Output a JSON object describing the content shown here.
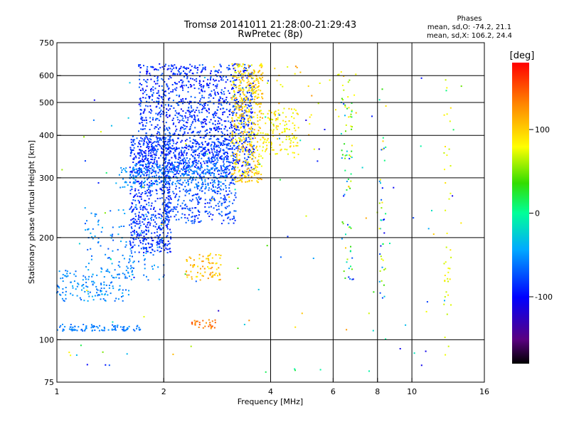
{
  "header": {
    "title_line1": "Tromsø 20141011 21:28:00-21:29:43",
    "title_line2": "RwPretec (8p)"
  },
  "phases": {
    "heading": "Phases",
    "line_o": "mean, sd,O: -74.2, 21.1",
    "line_x": "mean, sd,X: 106.2, 24.4"
  },
  "colorbar": {
    "unit": "[deg]",
    "ticks": [
      {
        "value": 100,
        "label": "100"
      },
      {
        "value": 0,
        "label": "0"
      },
      {
        "value": -100,
        "label": "-100"
      }
    ],
    "range": [
      -180,
      180
    ]
  },
  "chart_data": {
    "type": "scatter",
    "xlabel": "Frequency [MHz]",
    "ylabel": "Stationary phase Virtual Height [km]",
    "xscale": "log",
    "yscale": "log",
    "xlim": [
      1,
      16
    ],
    "ylim": [
      75,
      750
    ],
    "x_ticks": [
      {
        "value": 1,
        "label": "1"
      },
      {
        "value": 2,
        "label": "2"
      },
      {
        "value": 4,
        "label": "4"
      },
      {
        "value": 6,
        "label": "6"
      },
      {
        "value": 8,
        "label": "8"
      },
      {
        "value": 10,
        "label": "10"
      },
      {
        "value": 16,
        "label": "16"
      }
    ],
    "y_ticks": [
      {
        "value": 75,
        "label": "75"
      },
      {
        "value": 100,
        "label": "100"
      },
      {
        "value": 200,
        "label": "200"
      },
      {
        "value": 300,
        "label": "300"
      },
      {
        "value": 400,
        "label": "400"
      },
      {
        "value": 500,
        "label": "500"
      },
      {
        "value": 600,
        "label": "600"
      },
      {
        "value": 750,
        "label": "750"
      }
    ],
    "grid_x": [
      2,
      4,
      6,
      8,
      10
    ],
    "grid_y": [
      100,
      200,
      300,
      400,
      500,
      600
    ],
    "clusters": [
      {
        "name": "o-low-layer",
        "f": [
          1.0,
          1.75
        ],
        "h": [
          106,
          111
        ],
        "phase": [
          -70,
          -50
        ],
        "count": 90
      },
      {
        "name": "o-lower-branch",
        "f": [
          1.0,
          1.6
        ],
        "h": [
          130,
          160
        ],
        "phase": [
          -70,
          -40
        ],
        "count": 140
      },
      {
        "name": "o-f-trace-lower",
        "f": [
          1.2,
          2.0
        ],
        "h": [
          150,
          250
        ],
        "phase": [
          -75,
          -40
        ],
        "count": 160
      },
      {
        "name": "o-f-cusp",
        "f": [
          1.6,
          2.1
        ],
        "h": [
          180,
          400
        ],
        "phase": [
          -100,
          -70
        ],
        "count": 600
      },
      {
        "name": "o-f-main",
        "f": [
          1.7,
          3.6
        ],
        "h": [
          300,
          650
        ],
        "phase": [
          -105,
          -65
        ],
        "count": 1500
      },
      {
        "name": "o-f-mid",
        "f": [
          2.0,
          3.2
        ],
        "h": [
          220,
          380
        ],
        "phase": [
          -95,
          -60
        ],
        "count": 500
      },
      {
        "name": "o-trace-cyan",
        "f": [
          1.5,
          3.0
        ],
        "h": [
          280,
          330
        ],
        "phase": [
          -65,
          -45
        ],
        "count": 220
      },
      {
        "name": "x-f-trace",
        "f": [
          3.1,
          3.8
        ],
        "h": [
          290,
          650
        ],
        "phase": [
          90,
          135
        ],
        "count": 450
      },
      {
        "name": "x-f-upper",
        "f": [
          3.8,
          4.8
        ],
        "h": [
          350,
          480
        ],
        "phase": [
          90,
          120
        ],
        "count": 120
      },
      {
        "name": "x-lower-patch",
        "f": [
          2.3,
          2.9
        ],
        "h": [
          150,
          180
        ],
        "phase": [
          100,
          140
        ],
        "count": 80
      },
      {
        "name": "x-e-layer",
        "f": [
          2.4,
          2.8
        ],
        "h": [
          108,
          115
        ],
        "phase": [
          135,
          160
        ],
        "count": 30
      },
      {
        "name": "x-sporadic",
        "f": [
          4.0,
          7.0
        ],
        "h": [
          400,
          650
        ],
        "phase": [
          80,
          140
        ],
        "count": 40
      },
      {
        "name": "vertical-6.5",
        "f": [
          6.3,
          6.8
        ],
        "h": [
          150,
          600
        ],
        "phase": [
          -100,
          120
        ],
        "count": 70
      },
      {
        "name": "vertical-8.2",
        "f": [
          8.1,
          8.5
        ],
        "h": [
          130,
          400
        ],
        "phase": [
          -110,
          120
        ],
        "count": 40
      },
      {
        "name": "vertical-12.5",
        "f": [
          12.3,
          12.9
        ],
        "h": [
          90,
          600
        ],
        "phase": [
          80,
          110
        ],
        "count": 40
      },
      {
        "name": "noise",
        "f": [
          1.0,
          14.0
        ],
        "h": [
          80,
          650
        ],
        "phase": [
          -120,
          140
        ],
        "count": 120
      }
    ]
  }
}
